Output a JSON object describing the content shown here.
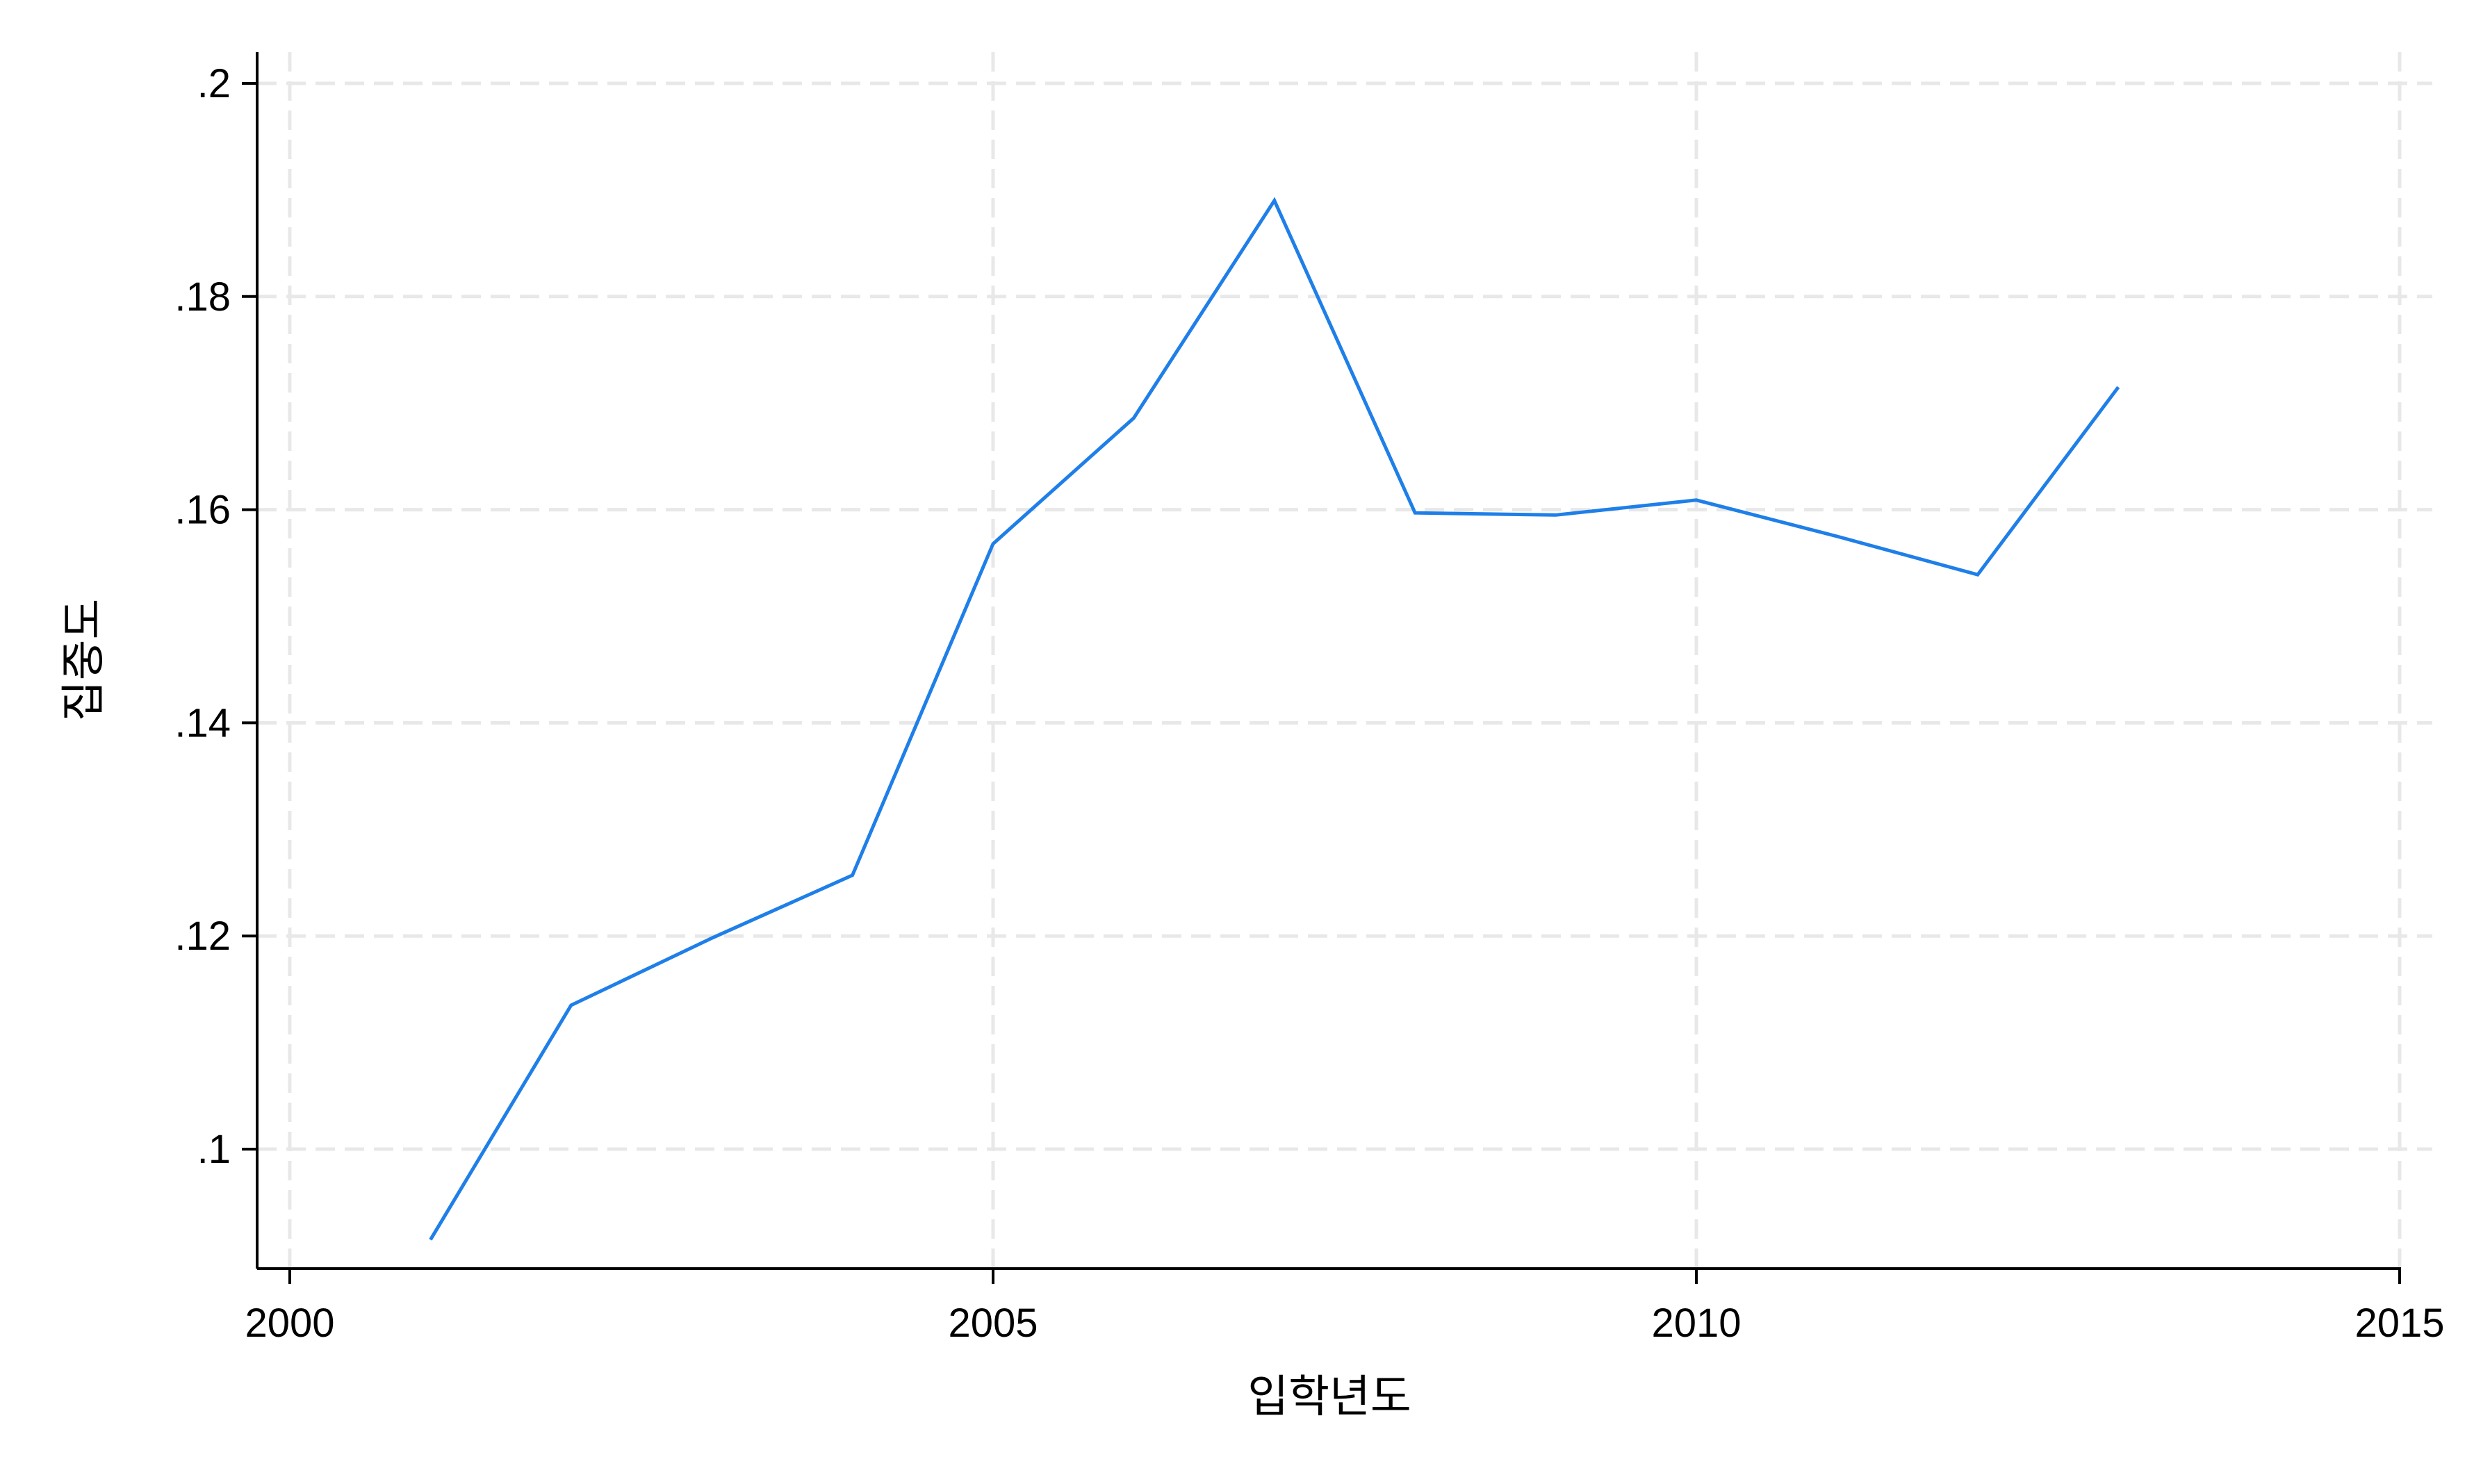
{
  "chart_data": {
    "type": "line",
    "title": "",
    "xlabel": "입학년도",
    "ylabel": "집중도",
    "xlim": [
      2000,
      2015
    ],
    "ylim": [
      0.09,
      0.2
    ],
    "x_ticks": [
      {
        "value": 2000,
        "label": "2000"
      },
      {
        "value": 2005,
        "label": "2005"
      },
      {
        "value": 2010,
        "label": "2010"
      },
      {
        "value": 2015,
        "label": "2015"
      }
    ],
    "y_ticks": [
      {
        "value": 0.1,
        "label": ".1"
      },
      {
        "value": 0.12,
        "label": ".12"
      },
      {
        "value": 0.14,
        "label": ".14"
      },
      {
        "value": 0.16,
        "label": ".16"
      },
      {
        "value": 0.18,
        "label": ".18"
      },
      {
        "value": 0.2,
        "label": ".2"
      }
    ],
    "grid": true,
    "legend": "none",
    "series": [
      {
        "color": "#1f7fe8",
        "x": [
          2001,
          2002,
          2003,
          2004,
          2005,
          2006,
          2007,
          2008,
          2009,
          2010,
          2011,
          2012,
          2013
        ],
        "y": [
          0.0915,
          0.1135,
          0.1198,
          0.1257,
          0.1568,
          0.1686,
          0.189,
          0.1597,
          0.1595,
          0.1609,
          0.1575,
          0.1539,
          0.1715
        ]
      }
    ]
  }
}
